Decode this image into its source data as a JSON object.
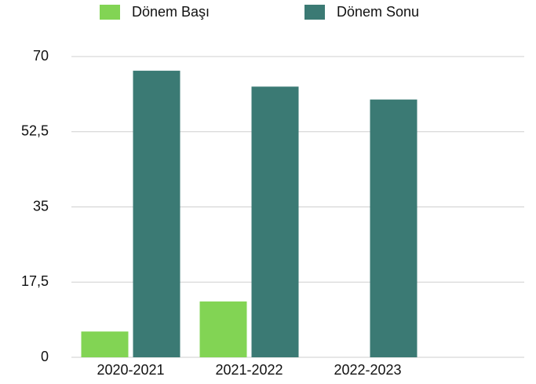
{
  "chart_data": {
    "type": "bar",
    "categories": [
      "2020-2021",
      "2021-2022",
      "2022-2023"
    ],
    "series": [
      {
        "name": "Dönem Başı",
        "color": "#82d454",
        "values": [
          6,
          13,
          null
        ]
      },
      {
        "name": "Dönem Sonu",
        "color": "#3b7a74",
        "values": [
          66.7,
          63,
          60
        ]
      }
    ],
    "ylim": [
      0,
      70
    ],
    "yticks": [
      0,
      {
        "value": 17.5,
        "label": "17,5"
      },
      35,
      {
        "value": 52.5,
        "label": "52,5"
      },
      70
    ],
    "grid": true,
    "legend": "top"
  }
}
